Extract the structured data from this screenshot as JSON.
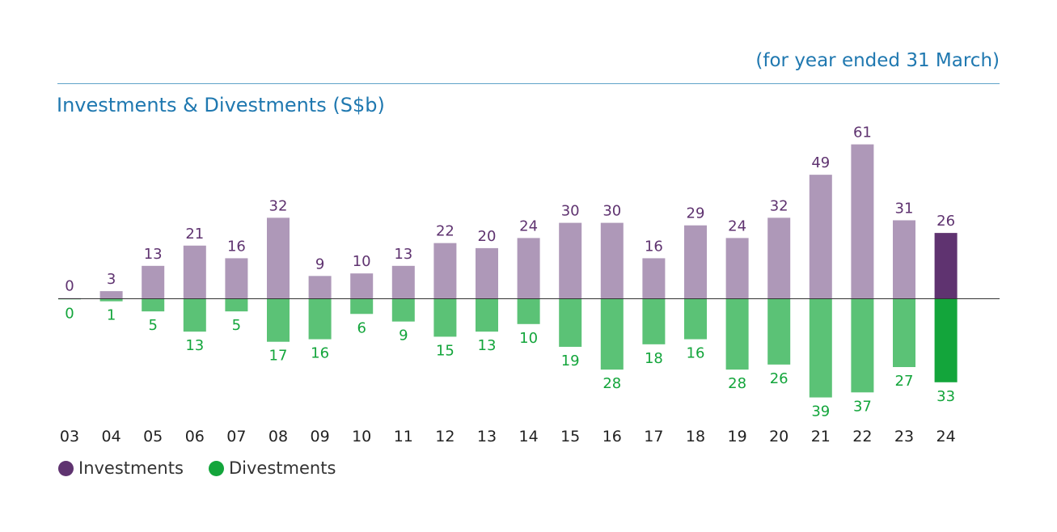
{
  "header": {
    "note": "(for year ended 31 March)",
    "title": "Investments & Divestments (S$b)"
  },
  "colors": {
    "investments": "#ae98b8",
    "investments_current": "#5f3370",
    "divestments": "#5bc276",
    "divestments_current": "#13a53b",
    "investment_label": "#5f3370",
    "divestment_label": "#13a53b",
    "note_title": "#1f78b0"
  },
  "legend": [
    {
      "label": "Investments",
      "color": "#5f3370"
    },
    {
      "label": "Divestments",
      "color": "#13a53b"
    }
  ],
  "chart_data": {
    "type": "bar",
    "title": "Investments & Divestments (S$b)",
    "categories": [
      "03",
      "04",
      "05",
      "06",
      "07",
      "08",
      "09",
      "10",
      "11",
      "12",
      "13",
      "14",
      "15",
      "16",
      "17",
      "18",
      "19",
      "20",
      "21",
      "22",
      "23",
      "24"
    ],
    "series": [
      {
        "name": "Investments",
        "values": [
          0,
          3,
          13,
          21,
          16,
          32,
          9,
          10,
          13,
          22,
          20,
          24,
          30,
          30,
          16,
          29,
          24,
          32,
          49,
          61,
          31,
          26
        ]
      },
      {
        "name": "Divestments",
        "values": [
          0,
          1,
          5,
          13,
          5,
          17,
          16,
          6,
          9,
          15,
          13,
          10,
          19,
          28,
          18,
          16,
          28,
          26,
          39,
          37,
          27,
          33
        ]
      }
    ],
    "divestments_plotted_below_axis": true,
    "highlight_category": "24",
    "grid": false,
    "legend_position": "bottom-left"
  }
}
